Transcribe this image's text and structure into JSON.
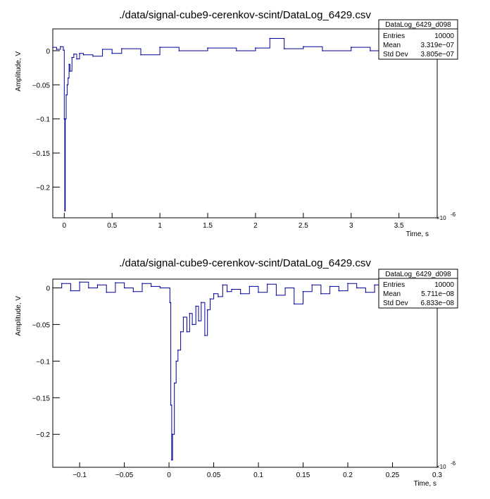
{
  "chart_data": [
    {
      "type": "line",
      "title": "./data/signal-cube9-cerenkov-scint/DataLog_6429.csv",
      "xlabel": "Time, s",
      "ylabel": "Amplitude, V",
      "x_multiplier": "×10",
      "x_exponent": "-6",
      "xlim": [
        -0.12,
        3.9
      ],
      "ylim": [
        -0.245,
        0.032
      ],
      "xticks": [
        {
          "value": 0,
          "label": "0"
        },
        {
          "value": 0.5,
          "label": "0.5"
        },
        {
          "value": 1,
          "label": "1"
        },
        {
          "value": 1.5,
          "label": "1.5"
        },
        {
          "value": 2,
          "label": "2"
        },
        {
          "value": 2.5,
          "label": "2.5"
        },
        {
          "value": 3,
          "label": "3"
        },
        {
          "value": 3.5,
          "label": "3.5"
        }
      ],
      "yticks": [
        {
          "value": 0,
          "label": "0"
        },
        {
          "value": -0.05,
          "label": "−0.05"
        },
        {
          "value": -0.1,
          "label": "−0.1"
        },
        {
          "value": -0.15,
          "label": "−0.15"
        },
        {
          "value": -0.2,
          "label": "−0.2"
        }
      ],
      "series": [
        {
          "color": "#000099",
          "x": [
            -0.12,
            -0.08,
            -0.04,
            -0.01,
            0.0,
            0.005,
            0.01,
            0.02,
            0.03,
            0.04,
            0.05,
            0.06,
            0.08,
            0.1,
            0.13,
            0.16,
            0.2,
            0.3,
            0.4,
            0.5,
            0.6,
            0.8,
            1.0,
            1.2,
            1.5,
            1.8,
            2.0,
            2.15,
            2.3,
            2.5,
            2.7,
            3.0,
            3.2,
            3.4,
            3.6,
            3.8,
            3.9
          ],
          "y": [
            0.005,
            0.002,
            0.006,
            0.001,
            -0.1,
            -0.235,
            -0.1,
            -0.065,
            -0.05,
            -0.04,
            -0.02,
            -0.03,
            -0.01,
            -0.005,
            -0.012,
            -0.004,
            -0.006,
            -0.008,
            0.002,
            -0.004,
            0.003,
            -0.006,
            0.005,
            0.0,
            0.004,
            0.0,
            0.004,
            0.018,
            0.003,
            0.006,
            0.0,
            0.005,
            0.0,
            0.006,
            0.002,
            0.005,
            0.003
          ]
        }
      ],
      "stats": {
        "name": "DataLog_6429_d098",
        "entries_label": "Entries",
        "entries": "10000",
        "mean_label": "Mean",
        "mean": "3.319e−07",
        "stddev_label": "Std Dev",
        "stddev": "3.805e−07"
      },
      "grid": false
    },
    {
      "type": "line",
      "title": "./data/signal-cube9-cerenkov-scint/DataLog_6429.csv",
      "xlabel": "Time, s",
      "ylabel": "Amplitude, V",
      "x_multiplier": "×10",
      "x_exponent": "-6",
      "xlim": [
        -0.13,
        0.3
      ],
      "ylim": [
        -0.245,
        0.012
      ],
      "xticks": [
        {
          "value": -0.1,
          "label": "−0.1"
        },
        {
          "value": -0.05,
          "label": "−0.05"
        },
        {
          "value": 0,
          "label": "0"
        },
        {
          "value": 0.05,
          "label": "0.05"
        },
        {
          "value": 0.1,
          "label": "0.1"
        },
        {
          "value": 0.15,
          "label": "0.15"
        },
        {
          "value": 0.2,
          "label": "0.2"
        },
        {
          "value": 0.25,
          "label": "0.25"
        },
        {
          "value": 0.3,
          "label": "0.3"
        }
      ],
      "yticks": [
        {
          "value": 0,
          "label": "0"
        },
        {
          "value": -0.05,
          "label": "−0.05"
        },
        {
          "value": -0.1,
          "label": "−0.1"
        },
        {
          "value": -0.15,
          "label": "−0.15"
        },
        {
          "value": -0.2,
          "label": "−0.2"
        }
      ],
      "series": [
        {
          "color": "#000099",
          "x": [
            -0.13,
            -0.12,
            -0.11,
            -0.1,
            -0.09,
            -0.08,
            -0.07,
            -0.06,
            -0.05,
            -0.04,
            -0.03,
            -0.02,
            -0.01,
            0.0,
            0.001,
            0.002,
            0.003,
            0.004,
            0.006,
            0.008,
            0.01,
            0.013,
            0.016,
            0.02,
            0.023,
            0.026,
            0.03,
            0.033,
            0.036,
            0.04,
            0.043,
            0.046,
            0.05,
            0.055,
            0.06,
            0.065,
            0.07,
            0.08,
            0.09,
            0.1,
            0.11,
            0.12,
            0.13,
            0.14,
            0.15,
            0.16,
            0.17,
            0.18,
            0.19,
            0.2,
            0.21,
            0.22,
            0.23,
            0.24,
            0.25,
            0.26,
            0.27,
            0.28,
            0.29,
            0.3
          ],
          "y": [
            0.0,
            0.006,
            -0.004,
            0.008,
            0.0,
            0.004,
            -0.006,
            0.007,
            0.0,
            -0.005,
            0.006,
            0.002,
            0.0,
            0.0,
            -0.02,
            -0.16,
            -0.235,
            -0.2,
            -0.13,
            -0.1,
            -0.085,
            -0.06,
            -0.04,
            -0.06,
            -0.035,
            -0.05,
            -0.025,
            -0.045,
            -0.02,
            -0.065,
            -0.03,
            -0.015,
            -0.008,
            -0.012,
            0.004,
            -0.005,
            -0.002,
            -0.008,
            0.002,
            -0.006,
            0.005,
            -0.01,
            0.0,
            -0.022,
            -0.005,
            0.004,
            -0.008,
            0.002,
            -0.004,
            0.006,
            0.0,
            -0.006,
            0.004,
            -0.002,
            0.005,
            0.0,
            -0.004,
            0.006,
            0.0,
            0.004
          ]
        }
      ],
      "stats": {
        "name": "DataLog_6429_d098",
        "entries_label": "Entries",
        "entries": "10000",
        "mean_label": "Mean",
        "mean": "5.711e−08",
        "stddev_label": "Std Dev",
        "stddev": "6.833e−08"
      },
      "grid": false
    }
  ]
}
